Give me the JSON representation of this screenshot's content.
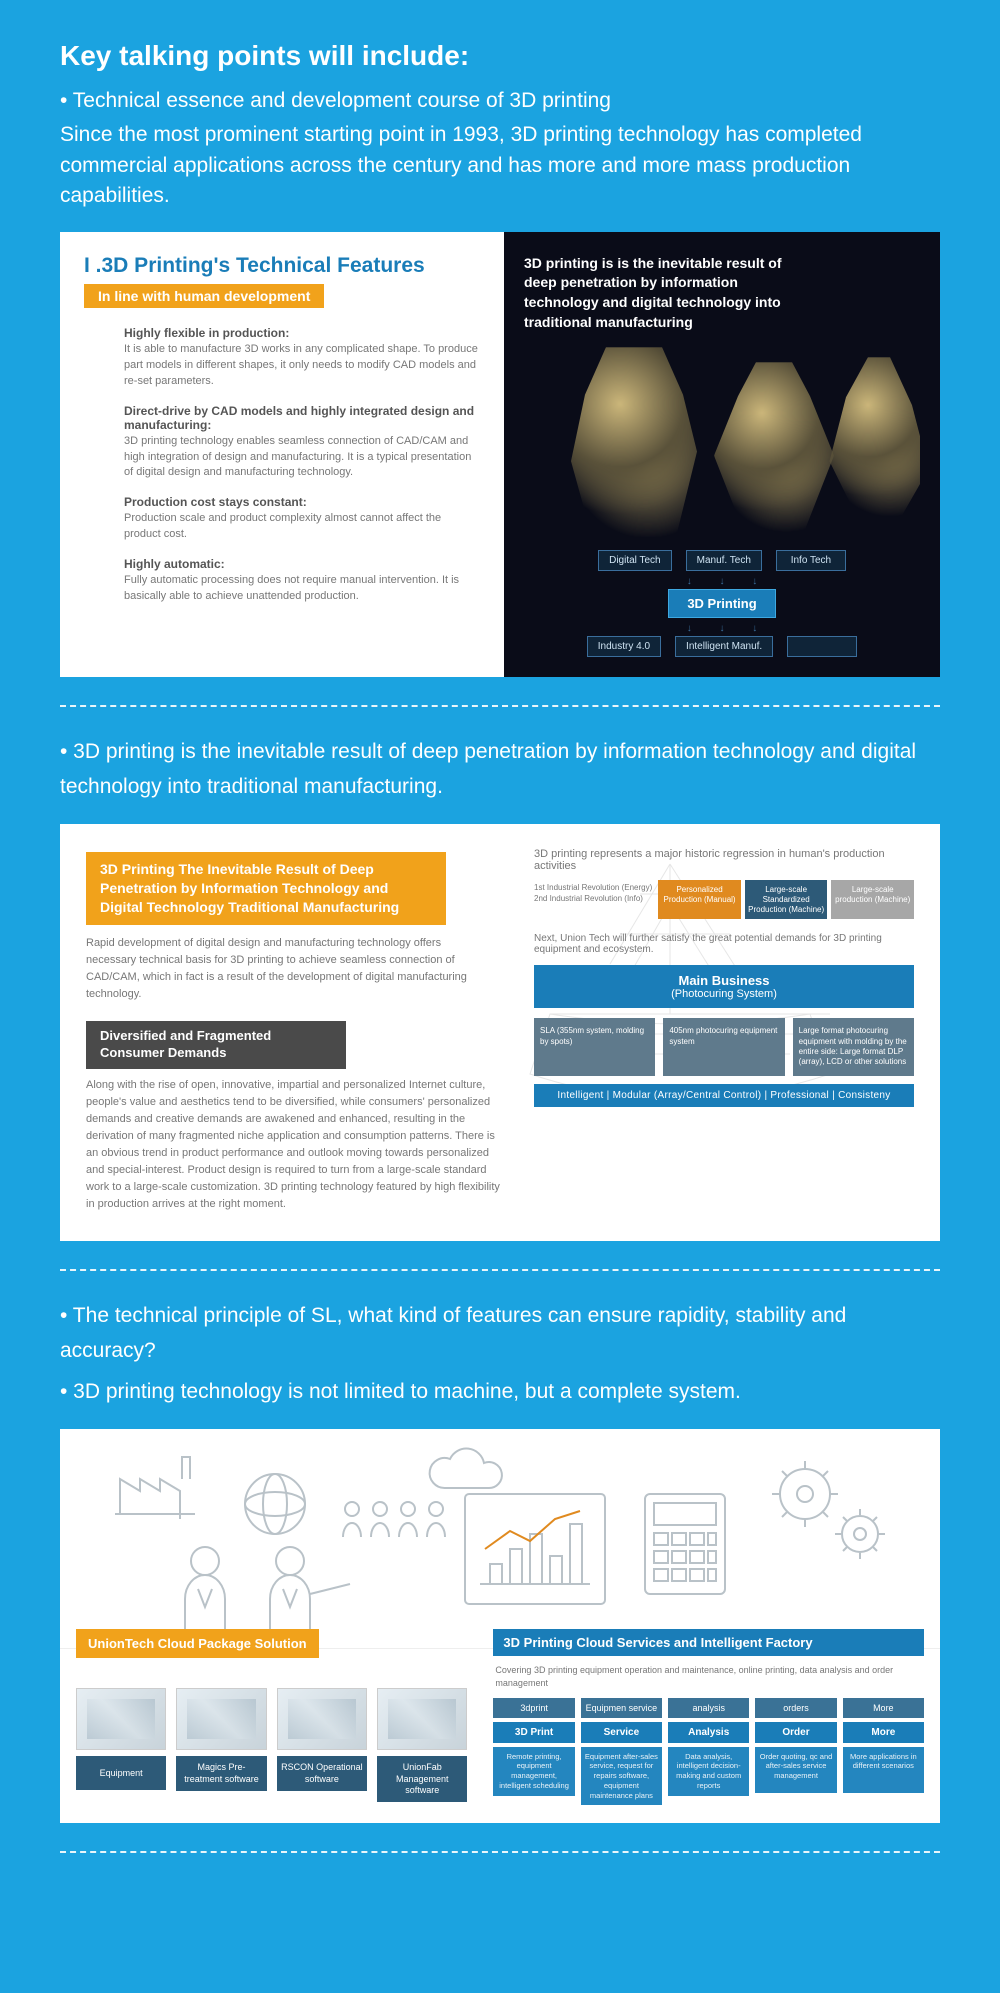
{
  "header": {
    "title": "Key talking points will include:",
    "bullet1": "• Technical essence and development course of 3D printing",
    "intro": "Since the most prominent starting point in 1993, 3D printing technology has completed commercial applications across the century and has more and more mass production capabilities."
  },
  "panel1": {
    "left": {
      "title": "I .3D Printing's Technical Features",
      "subbar": "In line with human development",
      "blocks": [
        {
          "head": "Highly flexible in production:",
          "body": "It is able to manufacture 3D works in any complicated shape. To produce part models in different shapes, it only needs to modify CAD models and re-set parameters."
        },
        {
          "head": "Direct-drive by CAD models and highly integrated design and manufacturing:",
          "body": "3D printing technology enables seamless connection of CAD/CAM and high integration of design and manufacturing. It is a typical presentation of digital design and manufacturing technology."
        },
        {
          "head": "Production cost stays constant:",
          "body": "Production scale and product complexity almost cannot affect the product cost."
        },
        {
          "head": "Highly automatic:",
          "body": "Fully automatic processing does not require manual intervention. It is basically able to achieve unattended production."
        }
      ]
    },
    "right": {
      "head": "3D printing is is the inevitable result of deep penetration by information technology and digital technology into traditional manufacturing",
      "top_nodes": [
        "Digital Tech",
        "Manuf. Tech",
        "Info Tech"
      ],
      "center": "3D Printing",
      "bottom_nodes": [
        "Industry 4.0",
        "Intelligent Manuf.",
        ""
      ]
    }
  },
  "mid1": {
    "line": "• 3D printing is the inevitable result of deep penetration by information technology and digital technology into traditional manufacturing."
  },
  "panel2": {
    "orange_head": "3D Printing The Inevitable Result of Deep Penetration by Information Technology and Digital Technology  Traditional Manufacturing",
    "body1": "Rapid development of digital design and manufacturing technology offers necessary technical basis for 3D printing to achieve seamless connection of CAD/CAM, which in fact is a result of the development of digital manufacturing technology.",
    "dark_head": "Diversified and Fragmented Consumer Demands",
    "body2": "Along with the rise of open, innovative, impartial and personalized Internet culture, people's value and aesthetics tend to be diversified, while consumers' personalized demands and creative demands are awakened and enhanced, resulting in the derivation of many fragmented niche application and consumption patterns. There is an obvious trend in product performance and outlook moving towards personalized and special-interest. Product design is required to turn from a large-scale standard work to a large-scale customization. 3D printing technology featured by high flexibility in production arrives at the right moment.",
    "right": {
      "caption": "3D printing represents a major historic regression in human's production activities",
      "flow_labels": [
        "1st Industrial Revolution (Energy)",
        "2nd Industrial Revolution (Info)"
      ],
      "flow_boxes": [
        {
          "text": "Personalized Production (Manual)",
          "color": "c-orange"
        },
        {
          "text": "Large-scale Standardized Production (Machine)",
          "color": "c-darkblue"
        },
        {
          "text": "Large-scale production (Machine)",
          "color": "c-grey"
        }
      ],
      "note": "Next, Union Tech will further satisfy the great potential demands for 3D printing equipment and ecosystem.",
      "mainbiz_title": "Main Business",
      "mainbiz_sub": "(Photocuring System)",
      "tri": [
        "SLA (355nm system, molding by spots)",
        "405nm photocuring equipment system",
        "Large format photocuring equipment with molding by the entire side: Large format DLP (array), LCD or other solutions"
      ],
      "tagbar": "Intelligent | Modular (Array/Central Control) | Professional | Consisteny"
    }
  },
  "mid2": {
    "line1": "• The technical principle of SL, what kind of features can ensure rapidity, stability and accuracy?",
    "line2": "• 3D printing technology is not limited to machine, but a complete system."
  },
  "panel3": {
    "left_bar": "UnionTech Cloud Package Solution",
    "thumbs": [
      "Equipment",
      "Magics Pre-treatment software",
      "RSCON Operational software",
      "UnionFab Management software"
    ],
    "right_head": "3D Printing Cloud Services and Intelligent Factory",
    "right_sub": "Covering 3D printing equipment operation and maintenance, online printing, data analysis and order management",
    "cols": [
      {
        "h": "3dprint",
        "t": "3D Print",
        "b": "Remote printing, equipment management, intelligent scheduling"
      },
      {
        "h": "Equipmen service",
        "t": "Service",
        "b": "Equipment after-sales service, request for repairs software, equipment maintenance plans"
      },
      {
        "h": "analysis",
        "t": "Analysis",
        "b": "Data analysis, intelligent decision-making and custom reports"
      },
      {
        "h": "orders",
        "t": "Order",
        "b": "Order quoting, qc and after-sales service management"
      },
      {
        "h": "More",
        "t": "More",
        "b": "More applications in different scenarios"
      }
    ]
  },
  "colors": {
    "page_bg": "#1ba3e0",
    "orange": "#f1a21b",
    "blue_dark": "#1a7db8",
    "blue_mid": "#2486bf",
    "steel": "#2d5a78",
    "grey_dark": "#4a4a4a"
  }
}
